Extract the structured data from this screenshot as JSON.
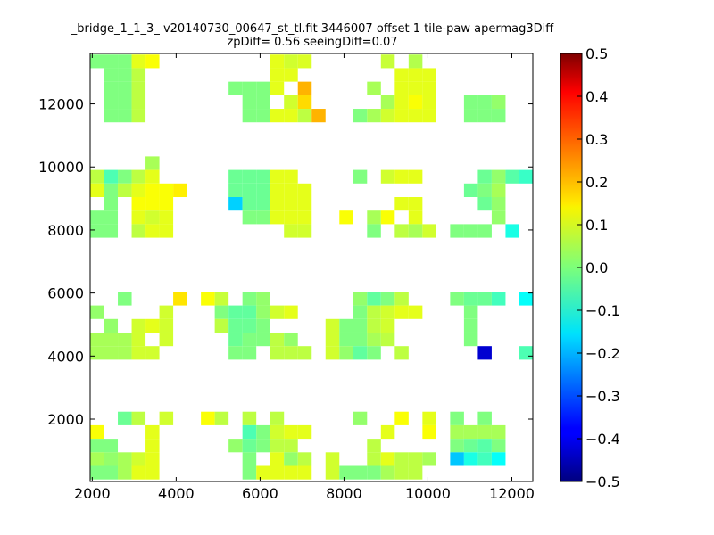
{
  "chart_data": {
    "type": "heatmap",
    "title_line1": "_bridge_1_1_3_ v20140730_00647_st_tl.fit 3446007 offset 1 tile-paw apermag3Diff",
    "title_line2": "zpDiff= 0.56 seeingDiff=0.07",
    "xlabel": "",
    "ylabel": "",
    "xlim": [
      1950,
      12500
    ],
    "ylim": [
      20,
      13600
    ],
    "xticks": [
      "2000",
      "4000",
      "6000",
      "8000",
      "10000",
      "12000"
    ],
    "xtick_values": [
      2000,
      4000,
      6000,
      8000,
      10000,
      12000
    ],
    "yticks": [
      "2000",
      "4000",
      "6000",
      "8000",
      "10000",
      "12000"
    ],
    "ytick_values": [
      2000,
      4000,
      6000,
      8000,
      10000,
      12000
    ],
    "colorbar": {
      "min": -0.5,
      "max": 0.5,
      "colormap": "jet",
      "ticks": [
        "0.5",
        "0.4",
        "0.3",
        "0.2",
        "0.1",
        "0.0",
        "−0.1",
        "−0.2",
        "−0.3",
        "−0.4",
        "−0.5"
      ],
      "tick_values": [
        0.5,
        0.4,
        0.3,
        0.2,
        0.1,
        0.0,
        -0.1,
        -0.2,
        -0.3,
        -0.4,
        -0.5
      ]
    },
    "grid": false,
    "cell_size_x": 330,
    "cell_size_y": 430,
    "cells": [
      [
        2115,
        13350,
        0.0
      ],
      [
        2445,
        13350,
        0.0
      ],
      [
        2775,
        13350,
        0.0
      ],
      [
        3105,
        13350,
        0.1
      ],
      [
        3435,
        13350,
        0.12
      ],
      [
        6405,
        13350,
        0.1
      ],
      [
        6735,
        13350,
        0.08
      ],
      [
        7065,
        13350,
        0.09
      ],
      [
        9045,
        13350,
        0.07
      ],
      [
        9705,
        13350,
        0.05
      ],
      [
        2445,
        12920,
        0.0
      ],
      [
        2775,
        12920,
        0.0
      ],
      [
        3105,
        12920,
        0.06
      ],
      [
        6405,
        12920,
        0.1
      ],
      [
        6735,
        12920,
        0.1
      ],
      [
        9375,
        12920,
        0.1
      ],
      [
        9705,
        12920,
        0.1
      ],
      [
        10035,
        12920,
        0.1
      ],
      [
        2445,
        12490,
        0.0
      ],
      [
        2775,
        12490,
        0.0
      ],
      [
        3105,
        12490,
        0.06
      ],
      [
        5415,
        12490,
        0.0
      ],
      [
        5745,
        12490,
        0.0
      ],
      [
        6075,
        12490,
        0.0
      ],
      [
        6405,
        12490,
        0.1
      ],
      [
        7065,
        12490,
        0.2
      ],
      [
        8715,
        12490,
        0.04
      ],
      [
        9375,
        12490,
        0.1
      ],
      [
        9705,
        12490,
        0.1
      ],
      [
        10035,
        12490,
        0.1
      ],
      [
        2445,
        12060,
        0.0
      ],
      [
        2775,
        12060,
        0.0
      ],
      [
        3105,
        12060,
        0.06
      ],
      [
        5745,
        12060,
        0.0
      ],
      [
        6075,
        12060,
        0.0
      ],
      [
        6735,
        12060,
        0.08
      ],
      [
        7065,
        12060,
        0.16
      ],
      [
        9045,
        12060,
        0.04
      ],
      [
        9375,
        12060,
        0.1
      ],
      [
        9705,
        12060,
        0.12
      ],
      [
        10035,
        12060,
        0.1
      ],
      [
        11025,
        12060,
        0.0
      ],
      [
        11355,
        12060,
        0.0
      ],
      [
        11685,
        12060,
        0.02
      ],
      [
        2445,
        11630,
        0.0
      ],
      [
        2775,
        11630,
        0.0
      ],
      [
        3105,
        11630,
        0.06
      ],
      [
        5745,
        11630,
        0.0
      ],
      [
        6075,
        11630,
        0.0
      ],
      [
        6405,
        11630,
        0.1
      ],
      [
        6735,
        11630,
        0.1
      ],
      [
        7065,
        11630,
        0.06
      ],
      [
        7395,
        11630,
        0.2
      ],
      [
        8385,
        11630,
        0.0
      ],
      [
        8715,
        11630,
        0.04
      ],
      [
        9045,
        11630,
        0.08
      ],
      [
        9375,
        11630,
        0.1
      ],
      [
        9705,
        11630,
        0.1
      ],
      [
        10035,
        11630,
        0.1
      ],
      [
        11025,
        11630,
        0.0
      ],
      [
        11355,
        11630,
        0.0
      ],
      [
        11685,
        11630,
        0.0
      ],
      [
        3435,
        10120,
        0.04
      ],
      [
        2115,
        9690,
        0.06
      ],
      [
        2445,
        9690,
        -0.05
      ],
      [
        2775,
        9690,
        0.0
      ],
      [
        3105,
        9690,
        0.06
      ],
      [
        3435,
        9690,
        0.1
      ],
      [
        5415,
        9690,
        -0.02
      ],
      [
        5745,
        9690,
        -0.02
      ],
      [
        6075,
        9690,
        -0.02
      ],
      [
        6405,
        9690,
        0.1
      ],
      [
        6735,
        9690,
        0.1
      ],
      [
        8385,
        9690,
        0.0
      ],
      [
        9045,
        9690,
        0.08
      ],
      [
        9375,
        9690,
        0.1
      ],
      [
        9705,
        9690,
        0.1
      ],
      [
        11355,
        9690,
        -0.02
      ],
      [
        11685,
        9690,
        0.02
      ],
      [
        12015,
        9690,
        -0.04
      ],
      [
        12345,
        9690,
        -0.07
      ],
      [
        2115,
        9260,
        0.1
      ],
      [
        2445,
        9260,
        0.0
      ],
      [
        2775,
        9260,
        0.06
      ],
      [
        3105,
        9260,
        0.1
      ],
      [
        3435,
        9260,
        0.12
      ],
      [
        3765,
        9260,
        0.12
      ],
      [
        4095,
        9260,
        0.14
      ],
      [
        5415,
        9260,
        -0.02
      ],
      [
        5745,
        9260,
        -0.02
      ],
      [
        6075,
        9260,
        -0.02
      ],
      [
        6405,
        9260,
        0.1
      ],
      [
        6735,
        9260,
        0.1
      ],
      [
        7065,
        9260,
        0.1
      ],
      [
        11025,
        9260,
        -0.02
      ],
      [
        11355,
        9260,
        0.0
      ],
      [
        11685,
        9260,
        0.04
      ],
      [
        2445,
        8830,
        0.0
      ],
      [
        3105,
        8830,
        0.12
      ],
      [
        3435,
        8830,
        0.12
      ],
      [
        3765,
        8830,
        0.12
      ],
      [
        5415,
        8830,
        -0.17
      ],
      [
        5745,
        8830,
        -0.02
      ],
      [
        6075,
        8830,
        -0.02
      ],
      [
        6405,
        8830,
        0.1
      ],
      [
        6735,
        8830,
        0.1
      ],
      [
        7065,
        8830,
        0.1
      ],
      [
        9375,
        8830,
        0.1
      ],
      [
        9705,
        8830,
        0.1
      ],
      [
        11355,
        8830,
        -0.02
      ],
      [
        11685,
        8830,
        0.02
      ],
      [
        2115,
        8400,
        0.0
      ],
      [
        2445,
        8400,
        0.0
      ],
      [
        3105,
        8400,
        0.1
      ],
      [
        3435,
        8400,
        0.08
      ],
      [
        3765,
        8400,
        0.1
      ],
      [
        5745,
        8400,
        0.0
      ],
      [
        6075,
        8400,
        0.0
      ],
      [
        6405,
        8400,
        0.1
      ],
      [
        6735,
        8400,
        0.1
      ],
      [
        7065,
        8400,
        0.1
      ],
      [
        8055,
        8400,
        0.12
      ],
      [
        8715,
        8400,
        0.04
      ],
      [
        9045,
        8400,
        0.12
      ],
      [
        9705,
        8400,
        0.1
      ],
      [
        11685,
        8400,
        0.02
      ],
      [
        2115,
        7970,
        0.0
      ],
      [
        2445,
        7970,
        0.0
      ],
      [
        3105,
        7970,
        0.06
      ],
      [
        3435,
        7970,
        0.1
      ],
      [
        3765,
        7970,
        0.1
      ],
      [
        6735,
        7970,
        0.08
      ],
      [
        7065,
        7970,
        0.08
      ],
      [
        8715,
        7970,
        0.0
      ],
      [
        9375,
        7970,
        0.06
      ],
      [
        9705,
        7970,
        0.04
      ],
      [
        10035,
        7970,
        0.08
      ],
      [
        10695,
        7970,
        0.0
      ],
      [
        11025,
        7970,
        0.0
      ],
      [
        11355,
        7970,
        0.0
      ],
      [
        12015,
        7970,
        -0.1
      ],
      [
        2775,
        5820,
        0.0
      ],
      [
        4095,
        5820,
        0.15
      ],
      [
        4755,
        5820,
        0.12
      ],
      [
        5085,
        5820,
        0.07
      ],
      [
        5745,
        5820,
        0.0
      ],
      [
        6075,
        5820,
        0.02
      ],
      [
        8385,
        5820,
        0.02
      ],
      [
        8715,
        5820,
        -0.03
      ],
      [
        9045,
        5820,
        0.0
      ],
      [
        9375,
        5820,
        0.06
      ],
      [
        10695,
        5820,
        0.0
      ],
      [
        11025,
        5820,
        -0.02
      ],
      [
        11355,
        5820,
        -0.02
      ],
      [
        11685,
        5820,
        -0.06
      ],
      [
        12345,
        5820,
        -0.12
      ],
      [
        2115,
        5390,
        0.02
      ],
      [
        3765,
        5390,
        0.08
      ],
      [
        5085,
        5390,
        0.0
      ],
      [
        5415,
        5390,
        -0.03
      ],
      [
        5745,
        5390,
        -0.03
      ],
      [
        6075,
        5390,
        0.02
      ],
      [
        6405,
        5390,
        0.08
      ],
      [
        6735,
        5390,
        0.1
      ],
      [
        8385,
        5390,
        0.0
      ],
      [
        8715,
        5390,
        0.06
      ],
      [
        9045,
        5390,
        0.08
      ],
      [
        9375,
        5390,
        0.1
      ],
      [
        9705,
        5390,
        0.1
      ],
      [
        11025,
        5390,
        0.0
      ],
      [
        2445,
        4960,
        0.02
      ],
      [
        3105,
        4960,
        0.08
      ],
      [
        3435,
        4960,
        0.1
      ],
      [
        3765,
        4960,
        0.08
      ],
      [
        5085,
        4960,
        0.06
      ],
      [
        5415,
        4960,
        -0.02
      ],
      [
        5745,
        4960,
        -0.02
      ],
      [
        6075,
        4960,
        0.0
      ],
      [
        7725,
        4960,
        0.08
      ],
      [
        8055,
        4960,
        0.0
      ],
      [
        8385,
        4960,
        0.0
      ],
      [
        8715,
        4960,
        0.06
      ],
      [
        9045,
        4960,
        0.08
      ],
      [
        11025,
        4960,
        0.0
      ],
      [
        2115,
        4530,
        0.04
      ],
      [
        2445,
        4530,
        0.04
      ],
      [
        2775,
        4530,
        0.04
      ],
      [
        3105,
        4530,
        0.08
      ],
      [
        3765,
        4530,
        0.08
      ],
      [
        5415,
        4530,
        -0.02
      ],
      [
        5745,
        4530,
        0.0
      ],
      [
        6075,
        4530,
        0.0
      ],
      [
        6405,
        4530,
        0.06
      ],
      [
        6735,
        4530,
        0.02
      ],
      [
        7725,
        4530,
        0.08
      ],
      [
        8055,
        4530,
        0.0
      ],
      [
        8385,
        4530,
        0.0
      ],
      [
        8715,
        4530,
        0.04
      ],
      [
        9045,
        4530,
        0.06
      ],
      [
        11025,
        4530,
        0.0
      ],
      [
        2115,
        4100,
        0.04
      ],
      [
        2445,
        4100,
        0.04
      ],
      [
        2775,
        4100,
        0.04
      ],
      [
        3105,
        4100,
        0.08
      ],
      [
        3435,
        4100,
        0.08
      ],
      [
        5415,
        4100,
        0.0
      ],
      [
        5745,
        4100,
        0.0
      ],
      [
        6405,
        4100,
        0.06
      ],
      [
        6735,
        4100,
        0.06
      ],
      [
        7065,
        4100,
        0.06
      ],
      [
        7725,
        4100,
        0.08
      ],
      [
        8055,
        4100,
        0.02
      ],
      [
        8385,
        4100,
        -0.03
      ],
      [
        8715,
        4100,
        0.0
      ],
      [
        9375,
        4100,
        0.06
      ],
      [
        11355,
        4100,
        -0.42
      ],
      [
        12345,
        4100,
        -0.05
      ],
      [
        2775,
        2020,
        -0.02
      ],
      [
        3105,
        2020,
        0.06
      ],
      [
        3765,
        2020,
        0.08
      ],
      [
        4755,
        2020,
        0.12
      ],
      [
        5085,
        2020,
        0.06
      ],
      [
        5745,
        2020,
        0.06
      ],
      [
        6405,
        2020,
        0.06
      ],
      [
        8385,
        2020,
        0.02
      ],
      [
        9375,
        2020,
        0.12
      ],
      [
        10035,
        2020,
        0.1
      ],
      [
        10695,
        2020,
        0.0
      ],
      [
        11355,
        2020,
        0.0
      ],
      [
        2115,
        1590,
        0.12
      ],
      [
        3435,
        1590,
        0.1
      ],
      [
        5745,
        1590,
        -0.05
      ],
      [
        6075,
        1590,
        0.0
      ],
      [
        6405,
        1590,
        0.08
      ],
      [
        6735,
        1590,
        0.1
      ],
      [
        7065,
        1590,
        0.1
      ],
      [
        9045,
        1590,
        0.1
      ],
      [
        10035,
        1590,
        0.12
      ],
      [
        10695,
        1590,
        0.04
      ],
      [
        11025,
        1590,
        0.04
      ],
      [
        11355,
        1590,
        0.04
      ],
      [
        11685,
        1590,
        0.04
      ],
      [
        2115,
        1160,
        0.0
      ],
      [
        2445,
        1160,
        0.0
      ],
      [
        3435,
        1160,
        0.1
      ],
      [
        5415,
        1160,
        0.02
      ],
      [
        5745,
        1160,
        -0.02
      ],
      [
        6075,
        1160,
        0.0
      ],
      [
        6405,
        1160,
        0.06
      ],
      [
        6735,
        1160,
        0.06
      ],
      [
        8715,
        1160,
        0.06
      ],
      [
        10695,
        1160,
        0.0
      ],
      [
        11025,
        1160,
        -0.02
      ],
      [
        11355,
        1160,
        -0.04
      ],
      [
        11685,
        1160,
        0.0
      ],
      [
        2115,
        730,
        0.04
      ],
      [
        2445,
        730,
        0.02
      ],
      [
        2775,
        730,
        0.04
      ],
      [
        3105,
        730,
        0.08
      ],
      [
        3435,
        730,
        0.1
      ],
      [
        5745,
        730,
        0.0
      ],
      [
        6405,
        730,
        0.1
      ],
      [
        6735,
        730,
        0.02
      ],
      [
        7065,
        730,
        0.06
      ],
      [
        7725,
        730,
        0.08
      ],
      [
        8715,
        730,
        0.06
      ],
      [
        9045,
        730,
        0.1
      ],
      [
        9375,
        730,
        0.06
      ],
      [
        9705,
        730,
        0.06
      ],
      [
        10035,
        730,
        0.04
      ],
      [
        10695,
        730,
        -0.18
      ],
      [
        11025,
        730,
        -0.1
      ],
      [
        11355,
        730,
        -0.06
      ],
      [
        11685,
        730,
        -0.12
      ],
      [
        2115,
        300,
        0.0
      ],
      [
        2445,
        300,
        0.0
      ],
      [
        2775,
        300,
        0.04
      ],
      [
        3105,
        300,
        0.1
      ],
      [
        3435,
        300,
        0.1
      ],
      [
        5745,
        300,
        0.0
      ],
      [
        6075,
        300,
        0.1
      ],
      [
        6405,
        300,
        0.1
      ],
      [
        6735,
        300,
        0.1
      ],
      [
        7065,
        300,
        0.1
      ],
      [
        7725,
        300,
        0.08
      ],
      [
        8055,
        300,
        0.0
      ],
      [
        8385,
        300,
        0.0
      ],
      [
        8715,
        300,
        0.0
      ],
      [
        9045,
        300,
        0.04
      ],
      [
        9375,
        300,
        0.06
      ],
      [
        9705,
        300,
        0.06
      ]
    ]
  }
}
